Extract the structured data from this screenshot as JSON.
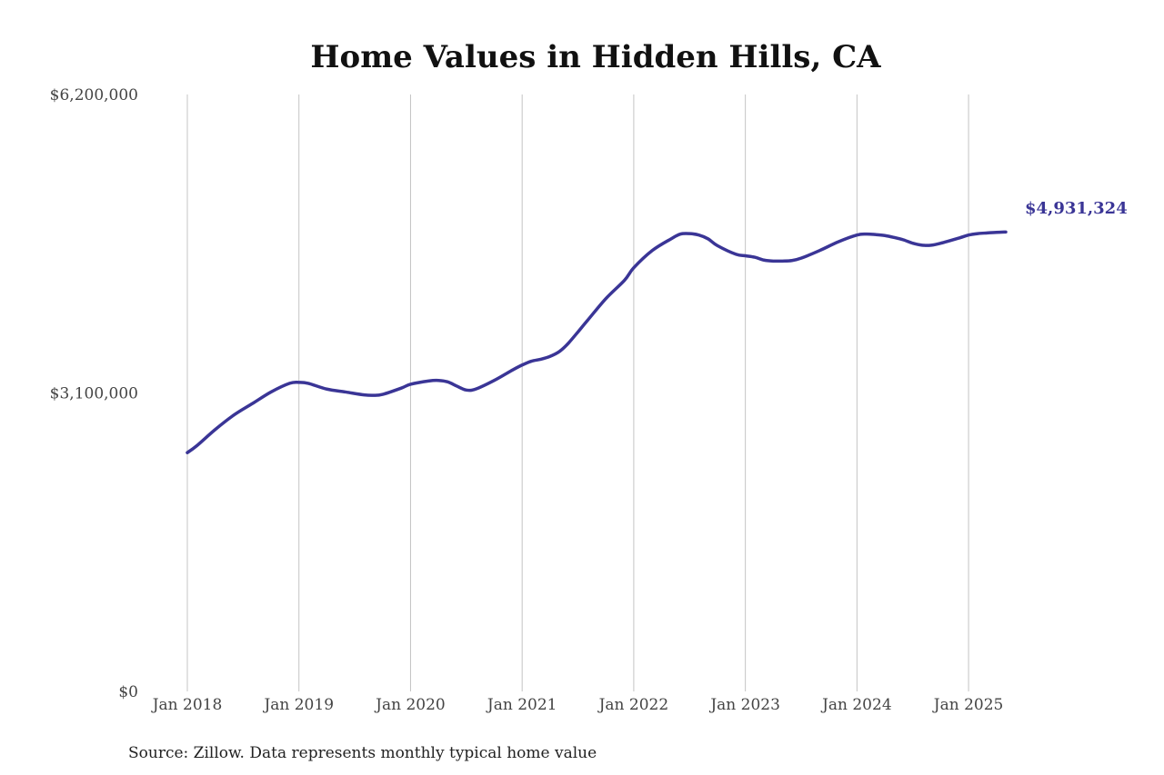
{
  "chart_data": {
    "type": "line",
    "title": "Home Values in Hidden Hills, CA",
    "source": "Source: Zillow. Data represents monthly typical home value",
    "xlabel": "",
    "ylabel": "",
    "ylim": [
      0,
      6200000
    ],
    "yticks": [
      {
        "value": 0,
        "label": "$0"
      },
      {
        "value": 3100000,
        "label": "$3,100,000"
      },
      {
        "value": 6200000,
        "label": "$6,200,000"
      }
    ],
    "xticks": [
      {
        "value": "2018-01",
        "label": "Jan 2018"
      },
      {
        "value": "2019-01",
        "label": "Jan 2019"
      },
      {
        "value": "2020-01",
        "label": "Jan 2020"
      },
      {
        "value": "2021-01",
        "label": "Jan 2021"
      },
      {
        "value": "2022-01",
        "label": "Jan 2022"
      },
      {
        "value": "2023-01",
        "label": "Jan 2023"
      },
      {
        "value": "2024-01",
        "label": "Jan 2024"
      },
      {
        "value": "2025-01",
        "label": "Jan 2025"
      }
    ],
    "xlim": [
      "2018-01",
      "2025-05"
    ],
    "vertical_grid": true,
    "horizontal_grid": false,
    "line_color": "#3a3596",
    "end_label": "$4,931,324",
    "series": [
      {
        "name": "",
        "x": [
          "2018-01",
          "2018-02",
          "2018-04",
          "2018-06",
          "2018-08",
          "2018-10",
          "2018-12",
          "2019-01",
          "2019-02",
          "2019-04",
          "2019-06",
          "2019-08",
          "2019-09",
          "2019-10",
          "2019-12",
          "2020-01",
          "2020-03",
          "2020-04",
          "2020-05",
          "2020-06",
          "2020-07",
          "2020-08",
          "2020-10",
          "2020-12",
          "2021-01",
          "2021-02",
          "2021-03",
          "2021-04",
          "2021-05",
          "2021-06",
          "2021-08",
          "2021-10",
          "2021-12",
          "2022-01",
          "2022-03",
          "2022-05",
          "2022-06",
          "2022-07",
          "2022-08",
          "2022-09",
          "2022-10",
          "2022-12",
          "2023-01",
          "2023-02",
          "2023-03",
          "2023-04",
          "2023-05",
          "2023-06",
          "2023-07",
          "2023-09",
          "2023-11",
          "2024-01",
          "2024-02",
          "2024-03",
          "2024-04",
          "2024-05",
          "2024-06",
          "2024-07",
          "2024-08",
          "2024-09",
          "2024-10",
          "2024-12",
          "2025-01",
          "2025-02",
          "2025-03",
          "2025-04",
          "2025-05"
        ],
        "values": [
          2480000,
          2550000,
          2720000,
          2870000,
          2990000,
          3110000,
          3200000,
          3210000,
          3200000,
          3140000,
          3110000,
          3080000,
          3075000,
          3085000,
          3150000,
          3190000,
          3225000,
          3230000,
          3215000,
          3170000,
          3130000,
          3140000,
          3230000,
          3340000,
          3390000,
          3430000,
          3450000,
          3480000,
          3530000,
          3620000,
          3850000,
          4080000,
          4270000,
          4400000,
          4580000,
          4700000,
          4750000,
          4755000,
          4740000,
          4700000,
          4630000,
          4540000,
          4525000,
          4510000,
          4480000,
          4470000,
          4470000,
          4475000,
          4500000,
          4580000,
          4670000,
          4740000,
          4750000,
          4745000,
          4735000,
          4715000,
          4690000,
          4655000,
          4635000,
          4635000,
          4655000,
          4710000,
          4740000,
          4755000,
          4762000,
          4768000,
          4772000
        ]
      }
    ]
  }
}
